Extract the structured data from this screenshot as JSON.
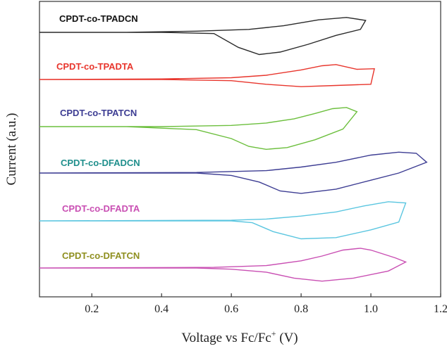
{
  "chart_data": {
    "type": "line",
    "xlabel": "Voltage vs Fc/Fc",
    "xlabel_sup": "+",
    "xlabel_unit": " (V)",
    "ylabel": "Current (a.u.)",
    "xlim": [
      0.05,
      1.2
    ],
    "xticks": [
      "0.2",
      "0.4",
      "0.6",
      "0.8",
      "1.0",
      "1.2"
    ],
    "xtick_values": [
      0.2,
      0.4,
      0.6,
      0.8,
      1.0,
      1.2
    ],
    "y_ticks_shown": false,
    "series": [
      {
        "name": "CPDT-co-TPADCN",
        "color": "#2a2a2a",
        "offset": 5,
        "points": [
          [
            0.05,
            0.0
          ],
          [
            0.4,
            0.0
          ],
          [
            0.55,
            -0.02
          ],
          [
            0.62,
            -0.25
          ],
          [
            0.68,
            -0.37
          ],
          [
            0.74,
            -0.33
          ],
          [
            0.82,
            -0.2
          ],
          [
            0.9,
            -0.05
          ],
          [
            0.97,
            0.05
          ],
          [
            0.985,
            0.2
          ],
          [
            0.93,
            0.25
          ],
          [
            0.85,
            0.21
          ],
          [
            0.75,
            0.11
          ],
          [
            0.65,
            0.05
          ],
          [
            0.5,
            0.02
          ],
          [
            0.3,
            0.0
          ],
          [
            0.05,
            0.0
          ]
        ]
      },
      {
        "name": "CPDT-co-TPADTA",
        "color": "#e8352c",
        "offset": 4,
        "points": [
          [
            0.05,
            0.0
          ],
          [
            0.4,
            0.0
          ],
          [
            0.6,
            -0.02
          ],
          [
            0.7,
            -0.08
          ],
          [
            0.8,
            -0.12
          ],
          [
            0.9,
            -0.1
          ],
          [
            1.0,
            -0.08
          ],
          [
            1.01,
            0.18
          ],
          [
            0.96,
            0.17
          ],
          [
            0.9,
            0.25
          ],
          [
            0.86,
            0.23
          ],
          [
            0.8,
            0.16
          ],
          [
            0.7,
            0.07
          ],
          [
            0.6,
            0.03
          ],
          [
            0.4,
            0.01
          ],
          [
            0.05,
            0.0
          ]
        ]
      },
      {
        "name": "CPDT-co-TPATCN",
        "color": "#6cbf3d",
        "offset": 3,
        "points": [
          [
            0.05,
            0.0
          ],
          [
            0.3,
            0.0
          ],
          [
            0.5,
            -0.05
          ],
          [
            0.6,
            -0.2
          ],
          [
            0.65,
            -0.33
          ],
          [
            0.7,
            -0.38
          ],
          [
            0.76,
            -0.35
          ],
          [
            0.84,
            -0.22
          ],
          [
            0.92,
            -0.04
          ],
          [
            0.96,
            0.25
          ],
          [
            0.93,
            0.32
          ],
          [
            0.89,
            0.3
          ],
          [
            0.84,
            0.22
          ],
          [
            0.78,
            0.13
          ],
          [
            0.7,
            0.06
          ],
          [
            0.6,
            0.02
          ],
          [
            0.4,
            0.0
          ],
          [
            0.05,
            0.0
          ]
        ]
      },
      {
        "name": "CPDT-co-DFADCN",
        "color": "#3d3d93",
        "offset": 2,
        "points": [
          [
            0.05,
            0.0
          ],
          [
            0.5,
            0.0
          ],
          [
            0.6,
            -0.04
          ],
          [
            0.68,
            -0.15
          ],
          [
            0.74,
            -0.3
          ],
          [
            0.8,
            -0.34
          ],
          [
            0.9,
            -0.27
          ],
          [
            1.0,
            -0.12
          ],
          [
            1.08,
            0.0
          ],
          [
            1.16,
            0.18
          ],
          [
            1.13,
            0.33
          ],
          [
            1.08,
            0.35
          ],
          [
            1.0,
            0.3
          ],
          [
            0.9,
            0.18
          ],
          [
            0.8,
            0.1
          ],
          [
            0.7,
            0.04
          ],
          [
            0.5,
            0.01
          ],
          [
            0.05,
            0.0
          ]
        ]
      },
      {
        "name": "CPDT-co-DFADTA",
        "color": "#5bc6e0",
        "offset": 1,
        "points": [
          [
            0.05,
            0.0
          ],
          [
            0.6,
            0.0
          ],
          [
            0.66,
            -0.03
          ],
          [
            0.72,
            -0.18
          ],
          [
            0.8,
            -0.3
          ],
          [
            0.9,
            -0.28
          ],
          [
            1.0,
            -0.15
          ],
          [
            1.08,
            -0.02
          ],
          [
            1.1,
            0.3
          ],
          [
            1.05,
            0.32
          ],
          [
            0.98,
            0.25
          ],
          [
            0.9,
            0.15
          ],
          [
            0.8,
            0.08
          ],
          [
            0.7,
            0.03
          ],
          [
            0.6,
            0.01
          ],
          [
            0.05,
            0.0
          ]
        ]
      },
      {
        "name": "CPDT-co-DFATCN",
        "color": "#c94fb3",
        "offset": 0,
        "points": [
          [
            0.05,
            0.0
          ],
          [
            0.5,
            0.0
          ],
          [
            0.6,
            -0.02
          ],
          [
            0.7,
            -0.07
          ],
          [
            0.78,
            -0.17
          ],
          [
            0.86,
            -0.22
          ],
          [
            0.95,
            -0.17
          ],
          [
            1.05,
            -0.05
          ],
          [
            1.1,
            0.1
          ],
          [
            1.07,
            0.17
          ],
          [
            1.0,
            0.3
          ],
          [
            0.97,
            0.33
          ],
          [
            0.92,
            0.3
          ],
          [
            0.86,
            0.2
          ],
          [
            0.8,
            0.12
          ],
          [
            0.7,
            0.04
          ],
          [
            0.55,
            0.01
          ],
          [
            0.05,
            0.0
          ]
        ]
      }
    ],
    "legend_labels": [
      {
        "text": "CPDT-co-TPADCN",
        "color": "#111111"
      },
      {
        "text": "CPDT-co-TPADTA",
        "color": "#e8352c"
      },
      {
        "text": "CPDT-co-TPATCN",
        "color": "#3d3d93"
      },
      {
        "text": "CPDT-co-DFADCN",
        "color": "#1f8f8c"
      },
      {
        "text": "CPDT-co-DFADTA",
        "color": "#c94fb3"
      },
      {
        "text": "CPDT-co-DFATCN",
        "color": "#8f8f1f"
      }
    ]
  }
}
